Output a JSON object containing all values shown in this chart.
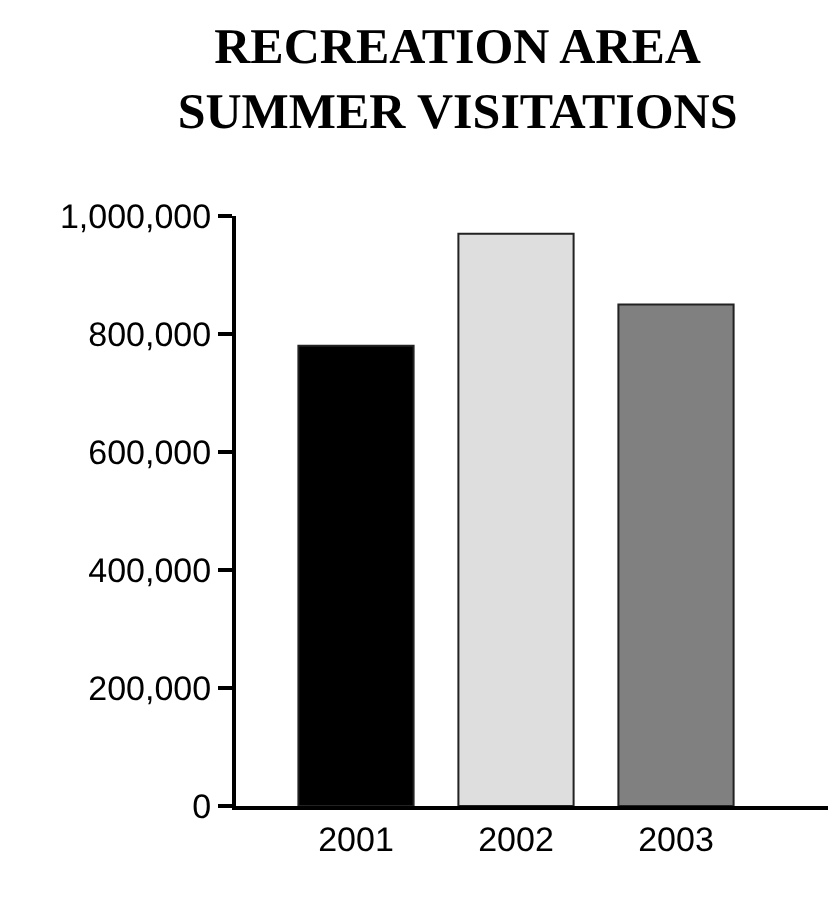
{
  "chart_data": {
    "type": "bar",
    "title": "RECREATION AREA\nSUMMER VISITATIONS",
    "categories": [
      "2001",
      "2002",
      "2003"
    ],
    "values": [
      780000,
      970000,
      850000
    ],
    "colors": [
      "#000000",
      "#dedede",
      "#808080"
    ],
    "ylim": [
      0,
      1000000
    ],
    "yticks": [
      {
        "value": 0,
        "label": "0"
      },
      {
        "value": 200000,
        "label": "200,000"
      },
      {
        "value": 400000,
        "label": "400,000"
      },
      {
        "value": 600000,
        "label": "600,000"
      },
      {
        "value": 800000,
        "label": "800,000"
      },
      {
        "value": 1000000,
        "label": "1,000,000"
      }
    ],
    "grid": false
  }
}
